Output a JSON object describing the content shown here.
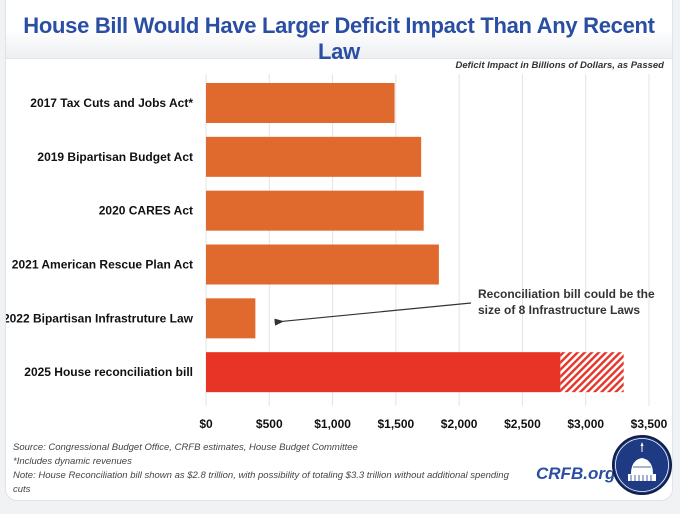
{
  "chart_data": {
    "type": "bar",
    "orientation": "horizontal",
    "title": "House Bill Would Have Larger Deficit Impact Than Any Recent Law",
    "subtitle": "Deficit Impact in Billions of Dollars, as Passed",
    "categories": [
      "2017 Tax Cuts and Jobs Act*",
      "2019 Bipartisan Budget Act",
      "2020 CARES Act",
      "2021 American Rescue Plan Act",
      "2022 Bipartisan Infrastruture Law",
      "2025 House reconciliation bill"
    ],
    "values": [
      1490,
      1700,
      1720,
      1840,
      390,
      2800
    ],
    "possible_extension": {
      "category": "2025 House reconciliation bill",
      "from": 2800,
      "to": 3300,
      "style": "hatched"
    },
    "colors": {
      "default_bar": "#e0692e",
      "highlight_bar": "#e73427",
      "hatch": "#e73427",
      "gridline": "#e3e3e3",
      "title": "#2a4ea3"
    },
    "highlight_index": 5,
    "xlabel": "",
    "ylabel": "",
    "xlim": [
      0,
      3500
    ],
    "x_ticks": [
      0,
      500,
      1000,
      1500,
      2000,
      2500,
      3000,
      3500
    ],
    "x_tick_labels": [
      "$0",
      "$500",
      "$1,000",
      "$1,500",
      "$2,000",
      "$2,500",
      "$3,000",
      "$3,500"
    ],
    "grid": "vertical",
    "annotation": {
      "lines": [
        "Reconciliation bill could be the",
        "size of 8 Infrastructure Laws"
      ],
      "points_to": "2022 Bipartisan Infrastruture Law"
    }
  },
  "footnotes": [
    "Source: Congressional Budget Office, CRFB estimates, House Budget Committee",
    "*Includes dynamic revenues",
    "Note: House Reconciliation bill shown as $2.8 trillion, with possibility of totaling $3.3 trillion without additional spending cuts"
  ],
  "branding": {
    "site": "CRFB.org",
    "logo": "capitol-seal-icon"
  }
}
